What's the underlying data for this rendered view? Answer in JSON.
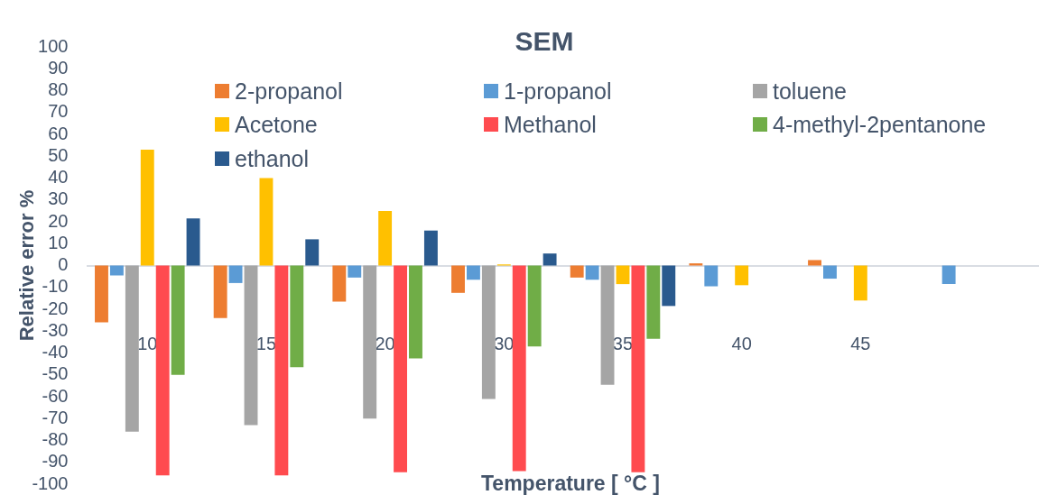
{
  "chart_data": {
    "type": "bar",
    "title": "SEM",
    "xlabel": "Temperature [ °C ]",
    "ylabel": "Relative error %",
    "categories": [
      "10",
      "15",
      "20",
      "30",
      "35",
      "40",
      "45",
      null
    ],
    "series": [
      {
        "name": "2-propanol",
        "color": "#ed7d31",
        "values": [
          -26,
          -24,
          -16.5,
          -12.5,
          -5.5,
          1,
          2.5,
          null
        ]
      },
      {
        "name": "1-propanol",
        "color": "#5b9bd5",
        "values": [
          -4.5,
          -8,
          -5.5,
          -6.5,
          -6.5,
          -9.5,
          -6,
          -8.5
        ]
      },
      {
        "name": "toluene",
        "color": "#a5a5a5",
        "values": [
          -76,
          -73,
          -70,
          -61,
          -54.5,
          null,
          null,
          null
        ]
      },
      {
        "name": "Acetone",
        "color": "#ffc000",
        "values": [
          53,
          40,
          25,
          0.5,
          -8.5,
          -9,
          -16,
          null
        ]
      },
      {
        "name": "Methanol",
        "color": "#ff4b4f",
        "values": [
          -96,
          -96,
          -94.5,
          -94,
          -94.5,
          null,
          null,
          null
        ]
      },
      {
        "name": "4-methyl-2pentanone",
        "color": "#70ad47",
        "values": [
          -50,
          -46.5,
          -42.5,
          -37,
          -33.5,
          null,
          null,
          null
        ]
      },
      {
        "name": "ethanol",
        "color": "#2a5a8e",
        "values": [
          21.5,
          12,
          16,
          5.5,
          -18.5,
          null,
          null,
          null
        ]
      }
    ],
    "ylim": [
      -100,
      100
    ],
    "yticks": [
      -100,
      -90,
      -80,
      -70,
      -60,
      -50,
      -40,
      -30,
      -20,
      -10,
      0,
      10,
      20,
      30,
      40,
      50,
      60,
      70,
      80,
      90,
      100
    ],
    "legend": "top"
  }
}
